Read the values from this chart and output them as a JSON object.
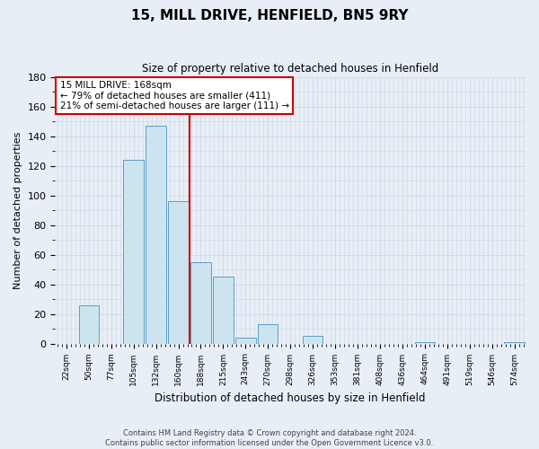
{
  "title": "15, MILL DRIVE, HENFIELD, BN5 9RY",
  "subtitle": "Size of property relative to detached houses in Henfield",
  "xlabel": "Distribution of detached houses by size in Henfield",
  "ylabel": "Number of detached properties",
  "bin_labels": [
    "22sqm",
    "50sqm",
    "77sqm",
    "105sqm",
    "132sqm",
    "160sqm",
    "188sqm",
    "215sqm",
    "243sqm",
    "270sqm",
    "298sqm",
    "326sqm",
    "353sqm",
    "381sqm",
    "408sqm",
    "436sqm",
    "464sqm",
    "491sqm",
    "519sqm",
    "546sqm",
    "574sqm"
  ],
  "bar_heights": [
    0,
    26,
    0,
    124,
    147,
    96,
    55,
    45,
    4,
    13,
    0,
    5,
    0,
    0,
    0,
    0,
    1,
    0,
    0,
    0,
    1
  ],
  "bar_color": "#cce4f0",
  "bar_edge_color": "#5b9ec9",
  "grid_color": "#c8d8ea",
  "vline_color": "#cc0000",
  "ylim": [
    0,
    180
  ],
  "yticks": [
    0,
    20,
    40,
    60,
    80,
    100,
    120,
    140,
    160,
    180
  ],
  "annotation_title": "15 MILL DRIVE: 168sqm",
  "annotation_line1": "← 79% of detached houses are smaller (411)",
  "annotation_line2": "21% of semi-detached houses are larger (111) →",
  "annotation_box_color": "#ffffff",
  "annotation_box_edge": "#cc0000",
  "footer_line1": "Contains HM Land Registry data © Crown copyright and database right 2024.",
  "footer_line2": "Contains public sector information licensed under the Open Government Licence v3.0.",
  "background_color": "#e8eef5"
}
